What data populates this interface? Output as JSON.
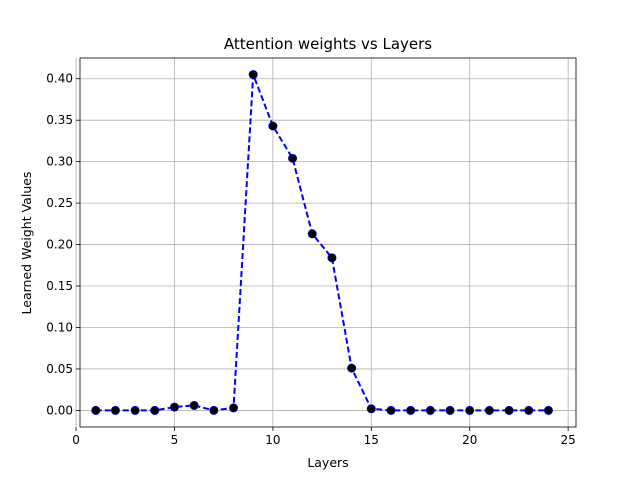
{
  "chart_data": {
    "type": "line",
    "title": "Attention weights vs Layers",
    "xlabel": "Layers",
    "ylabel": "Learned Weight Values",
    "xlim": [
      0.2,
      25.4
    ],
    "ylim": [
      -0.02,
      0.425
    ],
    "xticks": [
      0,
      5,
      10,
      15,
      20,
      25
    ],
    "xtick_labels": [
      "0",
      "5",
      "10",
      "15",
      "20",
      "25"
    ],
    "yticks": [
      0.0,
      0.05,
      0.1,
      0.15,
      0.2,
      0.25,
      0.3,
      0.35,
      0.4
    ],
    "ytick_labels": [
      "0.00",
      "0.05",
      "0.10",
      "0.15",
      "0.20",
      "0.25",
      "0.30",
      "0.35",
      "0.40"
    ],
    "grid": true,
    "series": [
      {
        "line_color": "#0000ff",
        "line_style": "dashed",
        "marker_color": "#000000",
        "x": [
          1,
          2,
          3,
          4,
          5,
          6,
          7,
          8,
          9,
          10,
          11,
          12,
          13,
          14,
          15,
          16,
          17,
          18,
          19,
          20,
          21,
          22,
          23,
          24
        ],
        "y": [
          0.0,
          0.0,
          0.0,
          0.0,
          0.004,
          0.006,
          0.0,
          0.003,
          0.405,
          0.343,
          0.304,
          0.213,
          0.184,
          0.051,
          0.002,
          0.0,
          0.0,
          0.0,
          0.0,
          0.0,
          0.0,
          0.0,
          0.0,
          0.0
        ]
      }
    ]
  }
}
